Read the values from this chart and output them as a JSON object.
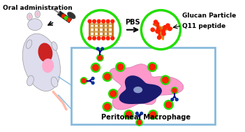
{
  "bg_color": "#ffffff",
  "text_oral": "Oral administration",
  "text_pbs": "PBS",
  "text_glucan": "Glucan Particle",
  "text_q11": "Q11 peptide",
  "text_macro": "Peritoneal Macrophage",
  "green_circle_color": "#22dd00",
  "macrophage_pink": "#ff99cc",
  "macrophage_nucleus_color": "#1a1a6e",
  "nucleus_oval_color": "#8899cc",
  "box_color": "#88bbdd",
  "particle_red": "#ff2200",
  "particle_green": "#22dd00",
  "particle_orange": "#ff8800",
  "peptide_tan": "#cc9944",
  "mouse_body": "#ddddee",
  "mouse_belly_red": "#cc2222",
  "mouse_belly_pink": "#ffaacc",
  "syringe_color": "#222222",
  "receptor_color": "#000088",
  "receptor_tip_color": "#003399"
}
